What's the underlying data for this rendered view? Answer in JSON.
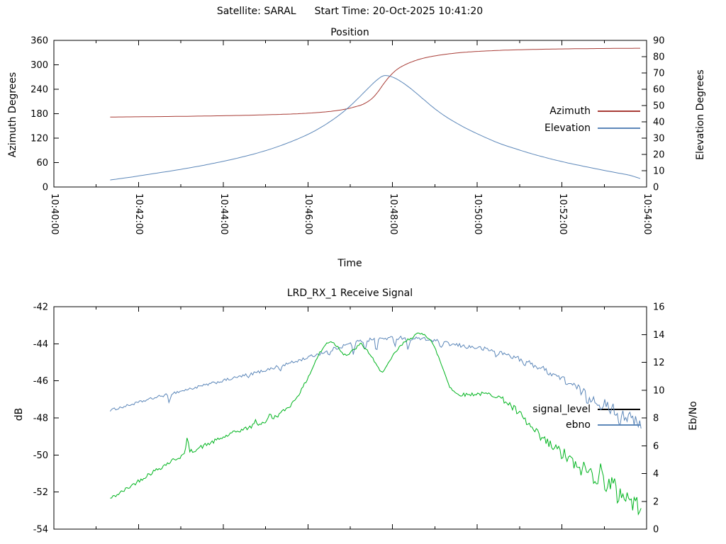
{
  "header": {
    "satellite_label": "Satellite: SARAL",
    "start_time_label": "Start Time: 20-Oct-2025 10:41:20"
  },
  "colors": {
    "azimuth": "#a83c36",
    "elevation": "#5c87b9",
    "signal_level": "#00b41e",
    "signal_level_legend": "#000000",
    "ebno": "#5c87b9",
    "axis": "#000000",
    "background": "#ffffff"
  },
  "chart_data": [
    {
      "type": "line",
      "title": "Position",
      "x_label": "Time",
      "y_left_label": "Azimuth Degrees",
      "y_right_label": "Elevation Degrees",
      "x_range_minutes_after_1040": [
        0,
        14
      ],
      "show_x_tick_labels": true,
      "x_ticks": [
        [
          0,
          "10:40:00"
        ],
        [
          2,
          "10:42:00"
        ],
        [
          4,
          "10:44:00"
        ],
        [
          6,
          "10:46:00"
        ],
        [
          8,
          "10:48:00"
        ],
        [
          10,
          "10:50:00"
        ],
        [
          12,
          "10:52:00"
        ],
        [
          14,
          "10:54:00"
        ]
      ],
      "x_minor_ticks": [
        1,
        3,
        5,
        7,
        9,
        11,
        13
      ],
      "y_left": {
        "range": [
          0,
          360
        ],
        "ticks": [
          [
            0,
            "0"
          ],
          [
            60,
            "60"
          ],
          [
            120,
            "120"
          ],
          [
            180,
            "180"
          ],
          [
            240,
            "240"
          ],
          [
            300,
            "300"
          ],
          [
            360,
            "360"
          ]
        ]
      },
      "y_right": {
        "range": [
          0,
          90
        ],
        "ticks": [
          [
            0,
            "0"
          ],
          [
            10,
            "10"
          ],
          [
            20,
            "20"
          ],
          [
            30,
            "30"
          ],
          [
            40,
            "40"
          ],
          [
            50,
            "50"
          ],
          [
            60,
            "60"
          ],
          [
            70,
            "70"
          ],
          [
            80,
            "80"
          ],
          [
            90,
            "90"
          ]
        ]
      },
      "legend": [
        {
          "label": "Azimuth",
          "color_key": "azimuth"
        },
        {
          "label": "Elevation",
          "color_key": "elevation"
        }
      ],
      "series": [
        {
          "name": "Azimuth",
          "axis": "left",
          "smooth": true,
          "color_key": "azimuth",
          "points": [
            [
              1.33,
              171.8
            ],
            [
              2.0,
              172.4
            ],
            [
              2.7,
              173.1
            ],
            [
              3.4,
              174.0
            ],
            [
              4.0,
              175.0
            ],
            [
              4.6,
              176.2
            ],
            [
              5.1,
              177.5
            ],
            [
              5.6,
              179.2
            ],
            [
              6.0,
              181.2
            ],
            [
              6.35,
              183.8
            ],
            [
              6.65,
              187.2
            ],
            [
              6.9,
              191.5
            ],
            [
              7.1,
              196.5
            ],
            [
              7.3,
              203.0
            ],
            [
              7.5,
              216.0
            ],
            [
              7.65,
              233.0
            ],
            [
              7.78,
              252.0
            ],
            [
              7.9,
              268.0
            ],
            [
              8.05,
              284.0
            ],
            [
              8.2,
              295.0
            ],
            [
              8.4,
              305.0
            ],
            [
              8.65,
              314.0
            ],
            [
              8.95,
              321.0
            ],
            [
              9.3,
              326.5
            ],
            [
              9.7,
              330.8
            ],
            [
              10.1,
              333.4
            ],
            [
              10.6,
              335.8
            ],
            [
              11.1,
              337.2
            ],
            [
              11.7,
              338.5
            ],
            [
              12.3,
              339.4
            ],
            [
              12.9,
              340.0
            ],
            [
              13.5,
              340.5
            ],
            [
              13.85,
              340.7
            ]
          ]
        },
        {
          "name": "Elevation",
          "axis": "right",
          "smooth": true,
          "color_key": "elevation",
          "points": [
            [
              1.33,
              4.3
            ],
            [
              1.8,
              6.0
            ],
            [
              2.3,
              8.0
            ],
            [
              2.8,
              10.0
            ],
            [
              3.3,
              12.2
            ],
            [
              3.8,
              14.7
            ],
            [
              4.3,
              17.5
            ],
            [
              4.8,
              20.8
            ],
            [
              5.2,
              24.0
            ],
            [
              5.6,
              27.8
            ],
            [
              6.0,
              32.3
            ],
            [
              6.3,
              36.5
            ],
            [
              6.6,
              41.5
            ],
            [
              6.9,
              47.5
            ],
            [
              7.15,
              53.5
            ],
            [
              7.4,
              60.0
            ],
            [
              7.6,
              65.0
            ],
            [
              7.78,
              68.2
            ],
            [
              7.95,
              67.9
            ],
            [
              8.15,
              65.5
            ],
            [
              8.4,
              61.0
            ],
            [
              8.7,
              54.5
            ],
            [
              9.0,
              48.0
            ],
            [
              9.3,
              42.5
            ],
            [
              9.7,
              36.5
            ],
            [
              10.1,
              31.5
            ],
            [
              10.5,
              27.0
            ],
            [
              10.9,
              23.5
            ],
            [
              11.3,
              20.3
            ],
            [
              11.7,
              17.5
            ],
            [
              12.1,
              15.0
            ],
            [
              12.5,
              12.8
            ],
            [
              12.9,
              10.7
            ],
            [
              13.3,
              8.7
            ],
            [
              13.6,
              7.2
            ],
            [
              13.85,
              5.2
            ]
          ]
        }
      ]
    },
    {
      "type": "line",
      "title": "LRD_RX_1 Receive Signal",
      "x_label": "",
      "y_left_label": "dB",
      "y_right_label": "Eb/No",
      "x_range_minutes_after_1040": [
        0,
        14
      ],
      "show_x_tick_labels": false,
      "x_ticks": [
        [
          0,
          ""
        ],
        [
          2,
          ""
        ],
        [
          4,
          ""
        ],
        [
          6,
          ""
        ],
        [
          8,
          ""
        ],
        [
          10,
          ""
        ],
        [
          12,
          ""
        ],
        [
          14,
          ""
        ]
      ],
      "x_minor_ticks": [
        1,
        3,
        5,
        7,
        9,
        11,
        13
      ],
      "y_left": {
        "range": [
          -54,
          -42
        ],
        "ticks": [
          [
            -54,
            "-54"
          ],
          [
            -52,
            "-52"
          ],
          [
            -50,
            "-50"
          ],
          [
            -48,
            "-48"
          ],
          [
            -46,
            "-46"
          ],
          [
            -44,
            "-44"
          ],
          [
            -42,
            "-42"
          ]
        ]
      },
      "y_right": {
        "range": [
          0,
          16
        ],
        "ticks": [
          [
            0,
            "0"
          ],
          [
            2,
            "2"
          ],
          [
            4,
            "4"
          ],
          [
            6,
            "6"
          ],
          [
            8,
            "8"
          ],
          [
            10,
            "10"
          ],
          [
            12,
            "12"
          ],
          [
            14,
            "14"
          ],
          [
            16,
            "16"
          ]
        ]
      },
      "legend": [
        {
          "label": "signal_level",
          "color_key": "signal_level_legend"
        },
        {
          "label": "ebno",
          "color_key": "ebno"
        }
      ],
      "series": [
        {
          "name": "ebno",
          "axis": "right",
          "smooth": false,
          "color_key": "ebno",
          "seed": 1234,
          "points": [
            [
              1.33,
              8.55
            ],
            [
              1.7,
              8.85
            ],
            [
              2.1,
              9.2
            ],
            [
              2.5,
              9.55
            ],
            [
              2.9,
              9.85
            ],
            [
              3.3,
              10.15
            ],
            [
              3.7,
              10.45
            ],
            [
              4.1,
              10.75
            ],
            [
              4.5,
              11.05
            ],
            [
              4.9,
              11.35
            ],
            [
              5.3,
              11.7
            ],
            [
              5.7,
              12.05
            ],
            [
              6.0,
              12.35
            ],
            [
              6.3,
              12.65
            ],
            [
              6.6,
              12.95
            ],
            [
              6.9,
              13.25
            ],
            [
              7.2,
              13.5
            ],
            [
              7.5,
              13.65
            ],
            [
              7.8,
              13.72
            ],
            [
              8.2,
              13.78
            ],
            [
              8.6,
              13.72
            ],
            [
              9.0,
              13.55
            ],
            [
              9.35,
              13.3
            ],
            [
              9.7,
              13.15
            ],
            [
              10.0,
              13.05
            ],
            [
              10.35,
              12.85
            ],
            [
              10.7,
              12.55
            ],
            [
              11.0,
              12.25
            ],
            [
              11.3,
              11.85
            ],
            [
              11.6,
              11.45
            ],
            [
              11.9,
              11.0
            ],
            [
              12.2,
              10.45
            ],
            [
              12.5,
              9.85
            ],
            [
              12.8,
              9.3
            ],
            [
              13.1,
              8.8
            ],
            [
              13.4,
              8.35
            ],
            [
              13.65,
              7.9
            ],
            [
              13.88,
              7.3
            ]
          ],
          "noise_envelope": [
            [
              1.33,
              0.09
            ],
            [
              5,
              0.11
            ],
            [
              7,
              0.13
            ],
            [
              9,
              0.14
            ],
            [
              11,
              0.17
            ],
            [
              12.2,
              0.28
            ],
            [
              12.8,
              0.42
            ],
            [
              13.88,
              0.5
            ]
          ],
          "events": [
            [
              2.72,
              -0.65
            ],
            [
              4.6,
              -0.3
            ],
            [
              5.35,
              -0.4
            ],
            [
              6.5,
              -0.45
            ],
            [
              7.08,
              -0.8
            ],
            [
              7.35,
              -0.65
            ],
            [
              7.62,
              -0.9
            ],
            [
              8.05,
              -0.55
            ],
            [
              8.37,
              -1.05
            ],
            [
              9.15,
              -0.5
            ],
            [
              10.45,
              -0.4
            ],
            [
              11.1,
              -0.45
            ],
            [
              12.6,
              -0.6
            ],
            [
              12.95,
              -0.75
            ],
            [
              13.35,
              -0.85
            ]
          ]
        },
        {
          "name": "signal_level",
          "axis": "left",
          "smooth": false,
          "color_key": "signal_level",
          "seed": 42,
          "points": [
            [
              1.33,
              -52.35
            ],
            [
              1.6,
              -52.0
            ],
            [
              1.9,
              -51.55
            ],
            [
              2.2,
              -51.1
            ],
            [
              2.5,
              -50.7
            ],
            [
              2.8,
              -50.3
            ],
            [
              3.1,
              -49.95
            ],
            [
              3.5,
              -49.55
            ],
            [
              3.9,
              -49.15
            ],
            [
              4.3,
              -48.75
            ],
            [
              4.7,
              -48.45
            ],
            [
              5.0,
              -48.2
            ],
            [
              5.3,
              -47.85
            ],
            [
              5.6,
              -47.3
            ],
            [
              5.85,
              -46.5
            ],
            [
              6.05,
              -45.6
            ],
            [
              6.25,
              -44.6
            ],
            [
              6.45,
              -43.95
            ],
            [
              6.55,
              -43.85
            ],
            [
              6.7,
              -44.15
            ],
            [
              6.85,
              -44.55
            ],
            [
              6.95,
              -44.6
            ],
            [
              7.1,
              -44.3
            ],
            [
              7.25,
              -44.0
            ],
            [
              7.45,
              -44.5
            ],
            [
              7.65,
              -45.3
            ],
            [
              7.78,
              -45.5
            ],
            [
              7.9,
              -45.1
            ],
            [
              8.05,
              -44.5
            ],
            [
              8.2,
              -44.1
            ],
            [
              8.35,
              -43.8
            ],
            [
              8.55,
              -43.5
            ],
            [
              8.75,
              -43.45
            ],
            [
              8.9,
              -43.8
            ],
            [
              9.05,
              -44.5
            ],
            [
              9.2,
              -45.4
            ],
            [
              9.35,
              -46.3
            ],
            [
              9.5,
              -46.7
            ],
            [
              9.7,
              -46.75
            ],
            [
              10.0,
              -46.7
            ],
            [
              10.3,
              -46.72
            ],
            [
              10.5,
              -46.85
            ],
            [
              10.7,
              -47.15
            ],
            [
              10.95,
              -47.7
            ],
            [
              11.2,
              -48.35
            ],
            [
              11.45,
              -49.0
            ],
            [
              11.7,
              -49.45
            ],
            [
              11.95,
              -49.85
            ],
            [
              12.2,
              -50.3
            ],
            [
              12.5,
              -50.75
            ],
            [
              12.8,
              -51.1
            ],
            [
              13.1,
              -51.5
            ],
            [
              13.4,
              -52.0
            ],
            [
              13.65,
              -52.5
            ],
            [
              13.8,
              -52.8
            ],
            [
              13.88,
              -52.3
            ]
          ],
          "noise_envelope": [
            [
              1.33,
              0.1
            ],
            [
              3,
              0.12
            ],
            [
              5,
              0.1
            ],
            [
              6.5,
              0.08
            ],
            [
              9,
              0.08
            ],
            [
              10.5,
              0.12
            ],
            [
              11,
              0.25
            ],
            [
              11.8,
              0.35
            ],
            [
              12.5,
              0.5
            ],
            [
              13.2,
              0.6
            ],
            [
              13.88,
              0.55
            ]
          ],
          "events": [
            [
              3.15,
              0.95
            ],
            [
              4.75,
              0.3
            ],
            [
              5.1,
              0.35
            ],
            [
              12.35,
              -0.5
            ],
            [
              12.9,
              0.5
            ],
            [
              13.3,
              -0.6
            ]
          ]
        }
      ]
    }
  ]
}
